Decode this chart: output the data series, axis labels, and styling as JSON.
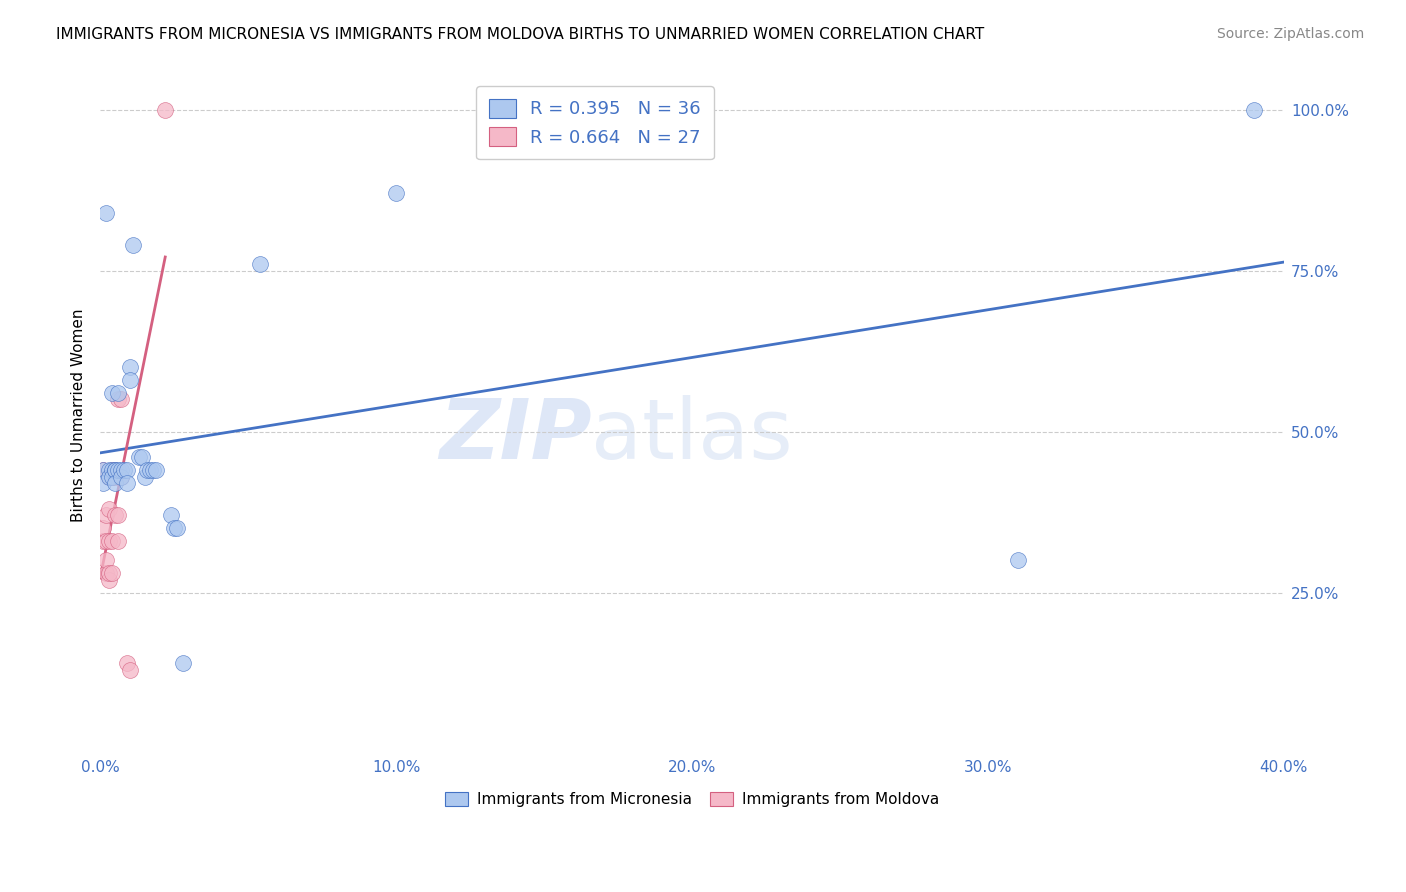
{
  "title": "IMMIGRANTS FROM MICRONESIA VS IMMIGRANTS FROM MOLDOVA BIRTHS TO UNMARRIED WOMEN CORRELATION CHART",
  "source": "Source: ZipAtlas.com",
  "ylabel": "Births to Unmarried Women",
  "legend_label1": "Immigrants from Micronesia",
  "legend_label2": "Immigrants from Moldova",
  "R1": 0.395,
  "N1": 36,
  "R2": 0.664,
  "N2": 27,
  "color1": "#adc8ef",
  "color2": "#f5b8c8",
  "line_color1": "#4472c4",
  "line_color2": "#d46080",
  "xlim": [
    0.0,
    0.4
  ],
  "ylim": [
    0.0,
    1.05
  ],
  "xticks": [
    0.0,
    0.1,
    0.2,
    0.3,
    0.4
  ],
  "ytick_vals": [
    0.25,
    0.5,
    0.75,
    1.0
  ],
  "ytick_labels": [
    "25.0%",
    "50.0%",
    "75.0%",
    "100.0%"
  ],
  "xtick_labels": [
    "0.0%",
    "10.0%",
    "20.0%",
    "30.0%",
    "40.0%"
  ],
  "grid_color": "#cccccc",
  "background_color": "#ffffff",
  "watermark_zip": "ZIP",
  "watermark_atlas": "atlas",
  "blue_x": [
    0.001,
    0.001,
    0.002,
    0.003,
    0.003,
    0.004,
    0.004,
    0.004,
    0.005,
    0.005,
    0.005,
    0.006,
    0.006,
    0.007,
    0.007,
    0.008,
    0.009,
    0.009,
    0.01,
    0.01,
    0.011,
    0.013,
    0.014,
    0.015,
    0.016,
    0.017,
    0.018,
    0.019,
    0.024,
    0.025,
    0.026,
    0.028,
    0.054,
    0.1,
    0.31,
    0.39
  ],
  "blue_y": [
    0.44,
    0.42,
    0.84,
    0.44,
    0.43,
    0.56,
    0.44,
    0.43,
    0.44,
    0.44,
    0.42,
    0.56,
    0.44,
    0.44,
    0.43,
    0.44,
    0.44,
    0.42,
    0.6,
    0.58,
    0.79,
    0.46,
    0.46,
    0.43,
    0.44,
    0.44,
    0.44,
    0.44,
    0.37,
    0.35,
    0.35,
    0.14,
    0.76,
    0.87,
    0.3,
    1.0
  ],
  "pink_x": [
    0.001,
    0.001,
    0.001,
    0.002,
    0.002,
    0.002,
    0.002,
    0.003,
    0.003,
    0.003,
    0.003,
    0.003,
    0.004,
    0.004,
    0.004,
    0.004,
    0.005,
    0.005,
    0.005,
    0.006,
    0.006,
    0.006,
    0.007,
    0.007,
    0.009,
    0.01,
    0.022
  ],
  "pink_y": [
    0.33,
    0.35,
    0.44,
    0.28,
    0.3,
    0.33,
    0.37,
    0.27,
    0.28,
    0.33,
    0.38,
    0.43,
    0.28,
    0.33,
    0.43,
    0.44,
    0.37,
    0.43,
    0.44,
    0.33,
    0.37,
    0.55,
    0.43,
    0.55,
    0.14,
    0.13,
    1.0
  ],
  "title_fontsize": 11,
  "label_fontsize": 11,
  "legend_fontsize": 13,
  "source_fontsize": 10
}
